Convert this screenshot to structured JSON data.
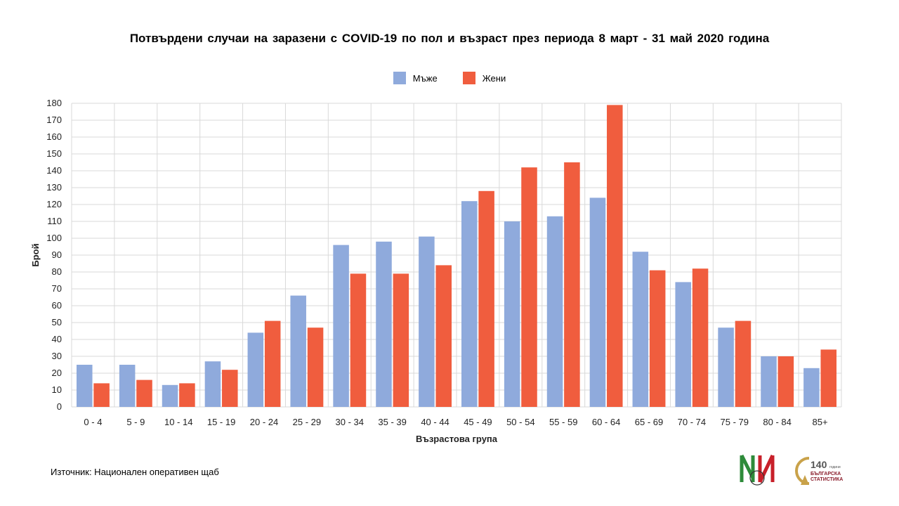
{
  "title": "Потвърдени случаи на заразени с COVID-19 по пол и възраст през периода 8 март - 31 май 2020 година",
  "source": "Източник: Национален оперативен щаб",
  "logo": {
    "badge_number": "140",
    "badge_caption": "години",
    "org_line1": "БЪЛГАРСКА",
    "org_line2": "СТАТИСТИКА"
  },
  "chart_data": {
    "type": "bar",
    "title": "Потвърдени случаи на заразени с COVID-19 по пол и възраст през периода 8 март - 31 май 2020 година",
    "xlabel": "Възрастова група",
    "ylabel": "Брой",
    "ylim": [
      0,
      180
    ],
    "ytick_step": 10,
    "grid": true,
    "legend_position": "top-center",
    "categories": [
      "0 - 4",
      "5 - 9",
      "10 - 14",
      "15 - 19",
      "20 - 24",
      "25 - 29",
      "30 - 34",
      "35 - 39",
      "40 - 44",
      "45 - 49",
      "50 - 54",
      "55 - 59",
      "60 - 64",
      "65 - 69",
      "70 - 74",
      "75 - 79",
      "80 - 84",
      "85+"
    ],
    "series": [
      {
        "name": "Мъже",
        "color": "#8faadc",
        "values": [
          25,
          25,
          13,
          27,
          44,
          66,
          96,
          98,
          101,
          122,
          110,
          113,
          124,
          92,
          74,
          47,
          30,
          23
        ]
      },
      {
        "name": "Жени",
        "color": "#f05d3e",
        "values": [
          14,
          16,
          14,
          22,
          51,
          47,
          79,
          79,
          84,
          128,
          142,
          145,
          179,
          81,
          82,
          51,
          30,
          34
        ]
      }
    ]
  }
}
